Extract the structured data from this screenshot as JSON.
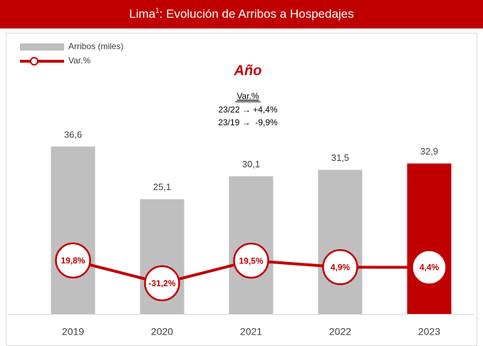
{
  "chart_data": {
    "type": "bar_line",
    "title": [
      "Lima",
      "1",
      ": Evolución de Arribos a Hospedajes"
    ],
    "subtitle": "Año",
    "annotation": [
      "Var.%",
      "23/22 → +4,4%",
      "23/19 →  -9,9%"
    ],
    "categories": [
      "2019",
      "2020",
      "2021",
      "2022",
      "2023"
    ],
    "series": [
      {
        "name": "Arribos (miles)",
        "type": "bar",
        "color": "#bfbfbf",
        "colors": [
          "#bfbfbf",
          "#bfbfbf",
          "#bfbfbf",
          "#bfbfbf",
          "#c00000"
        ],
        "values": [
          36.6,
          25.1,
          30.1,
          31.5,
          32.9
        ],
        "value_labels": [
          "36,6",
          "25,1",
          "30,1",
          "31,5",
          "32,9"
        ]
      },
      {
        "name": "Var.%",
        "type": "line",
        "axis": "y2",
        "color": "#c00000",
        "values": [
          19.8,
          -31.2,
          19.5,
          4.9,
          4.4
        ],
        "value_labels": [
          "19,8%",
          "-31,2%",
          "19,5%",
          "4,9%",
          "4,4%"
        ]
      }
    ],
    "ylim": [
      0,
      40
    ],
    "y2lim": [
      -100,
      310
    ],
    "legend": "top-left"
  }
}
